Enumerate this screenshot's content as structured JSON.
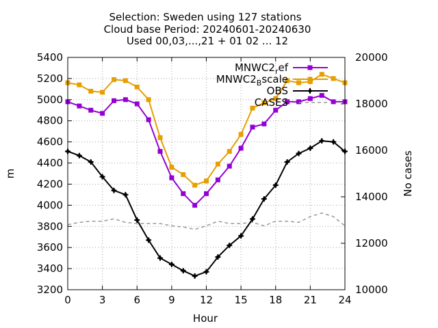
{
  "chart_data": {
    "type": "line",
    "title_lines": [
      "Selection: Sweden using   127 stations",
      "Cloud base   Period: 20240601-20240630",
      "Used 00,03,...,21 + 01 02 ... 12"
    ],
    "xlabel": "Hour",
    "ylabel": "m",
    "y2label": "No cases",
    "xlim": [
      0,
      24
    ],
    "ylim": [
      3200,
      5400
    ],
    "y2lim": [
      10000,
      20000
    ],
    "xticks": [
      "0",
      "3",
      "6",
      "9",
      "12",
      "15",
      "18",
      "21",
      "24"
    ],
    "yticks": [
      "3200",
      "3400",
      "3600",
      "3800",
      "4000",
      "4200",
      "4400",
      "4600",
      "4800",
      "5000",
      "5200",
      "5400"
    ],
    "y2ticks": [
      "10000",
      "12000",
      "14000",
      "16000",
      "18000",
      "20000"
    ],
    "grid": true,
    "legend_position": "top-right",
    "x": [
      0,
      1,
      2,
      3,
      4,
      5,
      6,
      7,
      8,
      9,
      10,
      11,
      12,
      13,
      14,
      15,
      16,
      17,
      18,
      19,
      20,
      21,
      22,
      23,
      24
    ],
    "series": [
      {
        "name": "MNWC2_ref",
        "legend_main": "MNWC2",
        "legend_sub": "r",
        "legend_rest": "ef",
        "color": "#9400d3",
        "axis": "y1",
        "marker": "square",
        "values": [
          4980,
          4940,
          4900,
          4870,
          4990,
          5000,
          4960,
          4810,
          4510,
          4260,
          4110,
          4000,
          4110,
          4240,
          4370,
          4540,
          4740,
          4770,
          4900,
          4980,
          4980,
          5010,
          5040,
          4980,
          4980
        ]
      },
      {
        "name": "MNWC2_Bscale",
        "legend_main": "MNWC2",
        "legend_sub": "B",
        "legend_rest": "scale",
        "color": "#e69f00",
        "axis": "y1",
        "marker": "square",
        "values": [
          5160,
          5140,
          5080,
          5070,
          5190,
          5180,
          5120,
          5000,
          4640,
          4360,
          4290,
          4190,
          4230,
          4390,
          4510,
          4670,
          4920,
          4970,
          5010,
          5180,
          5160,
          5170,
          5240,
          5200,
          5160
        ]
      },
      {
        "name": "OBS",
        "legend_main": "OBS",
        "color": "#000000",
        "axis": "y1",
        "marker": "plus",
        "values": [
          4510,
          4470,
          4410,
          4270,
          4140,
          4100,
          3860,
          3670,
          3500,
          3440,
          3380,
          3330,
          3370,
          3510,
          3620,
          3710,
          3870,
          4060,
          4190,
          4410,
          4490,
          4540,
          4610,
          4600,
          4510
        ]
      },
      {
        "name": "CASES",
        "legend_main": "CASES",
        "color": "#999999",
        "axis": "y2",
        "dashed": true,
        "values": [
          12800,
          12900,
          12950,
          12950,
          13050,
          12900,
          12850,
          12850,
          12850,
          12750,
          12700,
          12600,
          12750,
          12950,
          12850,
          12850,
          12900,
          12750,
          12950,
          12950,
          12900,
          13150,
          13300,
          13150,
          12750
        ]
      }
    ]
  }
}
